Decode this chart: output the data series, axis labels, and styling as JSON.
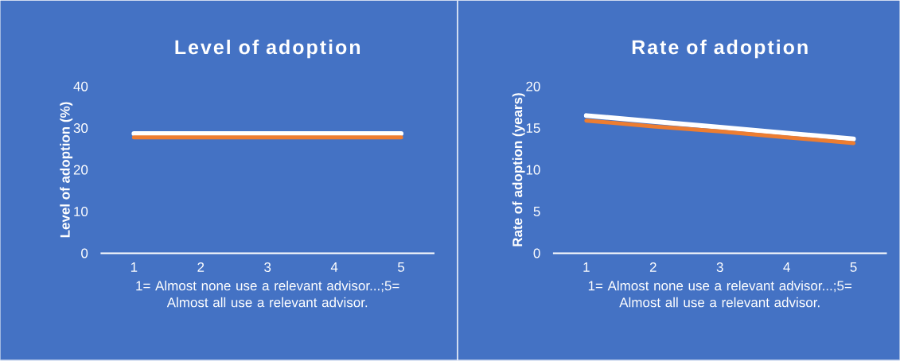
{
  "chart_data": [
    {
      "type": "line",
      "title": "Level of adoption",
      "xlabel": "1= Almost none use a relevant advisor...;5= Almost all use a relevant advisor.",
      "ylabel": "Level of adoption (%)",
      "categories": [
        "1",
        "2",
        "3",
        "4",
        "5"
      ],
      "ylim": [
        0,
        40
      ],
      "yticks": [
        0,
        10,
        20,
        30,
        40
      ],
      "series": [
        {
          "color": "#ffffff",
          "values": [
            28.7,
            28.7,
            28.7,
            28.7,
            28.7
          ]
        },
        {
          "color": "#ed7d31",
          "values": [
            27.8,
            27.8,
            27.8,
            27.8,
            27.8
          ]
        }
      ]
    },
    {
      "type": "line",
      "title": "Rate of adoption",
      "xlabel": "1= Almost none use a relevant advisor...;5= Almost all use a relevant advisor.",
      "ylabel": "Rate of adoption (years)",
      "categories": [
        "1",
        "2",
        "3",
        "4",
        "5"
      ],
      "ylim": [
        0,
        20
      ],
      "yticks": [
        0,
        5,
        10,
        15,
        20
      ],
      "series": [
        {
          "color": "#ffffff",
          "values": [
            16.5,
            15.8,
            15.1,
            14.4,
            13.7
          ]
        },
        {
          "color": "#ed7d31",
          "values": [
            15.9,
            15.2,
            14.6,
            13.9,
            13.2
          ]
        }
      ]
    }
  ]
}
